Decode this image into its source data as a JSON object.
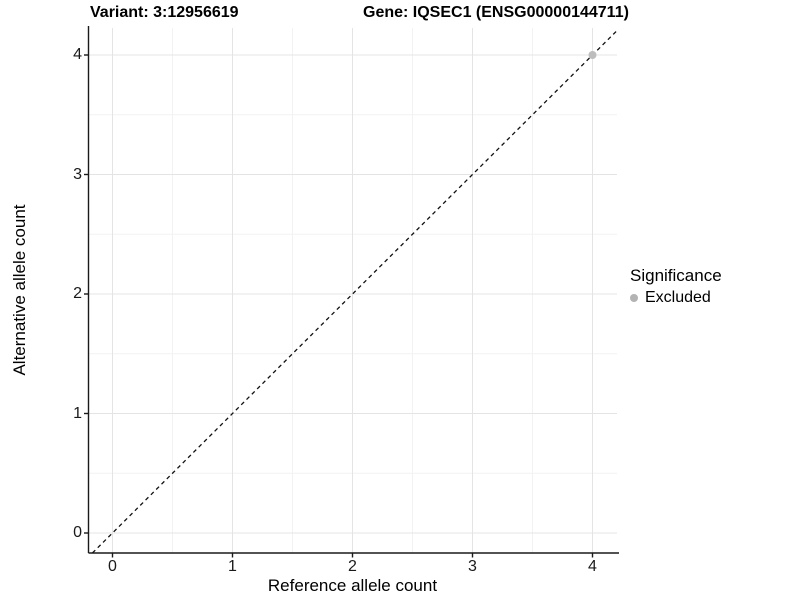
{
  "titles": {
    "variant": "Variant: 3:12956619",
    "gene": "Gene: IQSEC1 (ENSG00000144711)"
  },
  "chart_data": {
    "type": "scatter",
    "xlabel": "Reference allele count",
    "ylabel": "Alternative allele count",
    "xlim": [
      -0.2,
      4.2
    ],
    "ylim": [
      -0.2,
      4.2
    ],
    "xticks": [
      "0",
      "1",
      "2",
      "3",
      "4"
    ],
    "yticks": [
      "0",
      "1",
      "2",
      "3",
      "4"
    ],
    "xtick_values": [
      0,
      1,
      2,
      3,
      4
    ],
    "ytick_values": [
      0,
      1,
      2,
      3,
      4
    ],
    "minor_tick_values": [
      0.5,
      1.5,
      2.5,
      3.5
    ],
    "grid": "major and minor gridlines on, white panel, black left/bottom axis lines only",
    "series": [
      {
        "name": "Excluded",
        "color": "#bdbdbd",
        "points": [
          {
            "x": 4,
            "y": 4
          }
        ]
      }
    ],
    "reference_line": {
      "equation": "y = x",
      "style": "dashed",
      "color": "#111111"
    },
    "legend": {
      "title": "Significance",
      "position": "right",
      "items": [
        {
          "label": "Excluded",
          "color": "#b3b3b3"
        }
      ]
    },
    "colors": {
      "axis_line": "#1a1a1a",
      "grid_major": "#e4e4e4",
      "grid_minor": "#f2f2f2",
      "point": "#bdbdbd",
      "text": "#000000"
    }
  }
}
